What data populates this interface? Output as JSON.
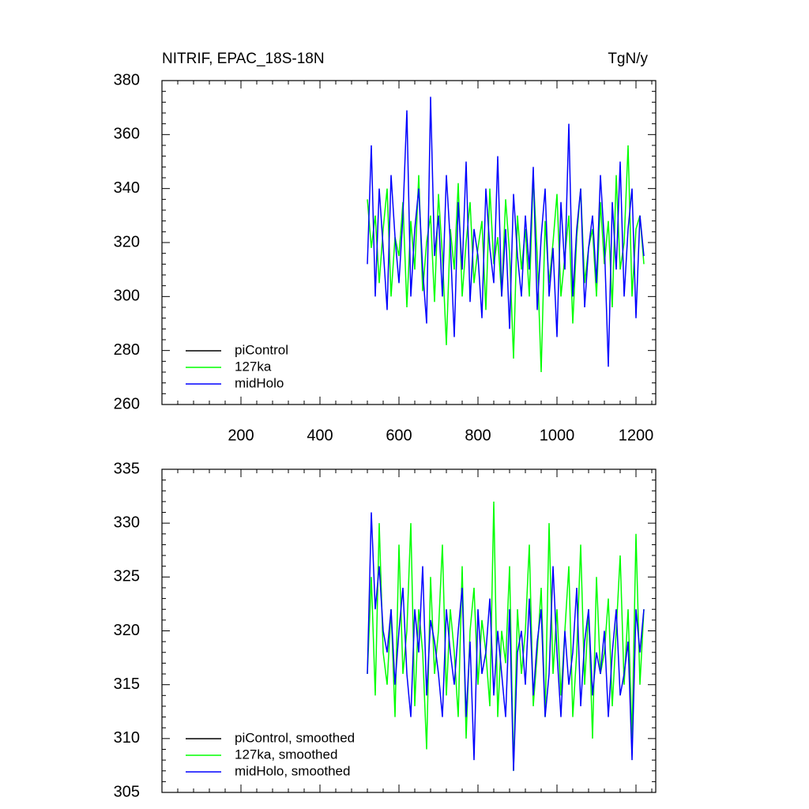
{
  "chart_data": [
    {
      "type": "line",
      "title": "NITRIF, EPAC_18S-18N",
      "units": "TgN/y",
      "x": [
        520,
        530,
        540,
        550,
        560,
        570,
        580,
        590,
        600,
        610,
        620,
        630,
        640,
        650,
        660,
        670,
        680,
        690,
        700,
        710,
        720,
        730,
        740,
        750,
        760,
        770,
        780,
        790,
        800,
        810,
        820,
        830,
        840,
        850,
        860,
        870,
        880,
        890,
        900,
        910,
        920,
        930,
        940,
        950,
        960,
        970,
        980,
        990,
        1000,
        1010,
        1020,
        1030,
        1040,
        1050,
        1060,
        1070,
        1080,
        1090,
        1100,
        1110,
        1120,
        1130,
        1140,
        1150,
        1160,
        1170,
        1180,
        1190,
        1200,
        1210,
        1220
      ],
      "xlim": [
        0,
        1250
      ],
      "xticks": [
        200,
        400,
        600,
        800,
        1000,
        1200
      ],
      "ylim": [
        260,
        380
      ],
      "yticks": [
        260,
        280,
        300,
        320,
        340,
        360,
        380
      ],
      "legend": "lower left",
      "series": [
        {
          "name": "piControl",
          "color": "#000000",
          "values": [
            null,
            null,
            null,
            null,
            null,
            null,
            null,
            null,
            null,
            null,
            null,
            null,
            null,
            null,
            null,
            null,
            null,
            null,
            null,
            null,
            null,
            null,
            null,
            null,
            null,
            null,
            null,
            null,
            null,
            null,
            null,
            null,
            null,
            null,
            null,
            null,
            null,
            null,
            null,
            null,
            null,
            null,
            null,
            null,
            null,
            null,
            null,
            null,
            null,
            null,
            null,
            null,
            null,
            null,
            null,
            null,
            null,
            null,
            null,
            null,
            null,
            null,
            null,
            null,
            null,
            null,
            null,
            null,
            null,
            null,
            null
          ]
        },
        {
          "name": "127ka",
          "color": "#00ff00",
          "values": [
            336,
            318,
            330,
            305,
            325,
            340,
            300,
            322,
            315,
            335,
            296,
            328,
            310,
            345,
            302,
            320,
            330,
            298,
            338,
            315,
            282,
            325,
            310,
            342,
            300,
            320,
            335,
            305,
            318,
            328,
            295,
            340,
            312,
            322,
            300,
            336,
            316,
            277,
            330,
            310,
            325,
            300,
            345,
            315,
            272,
            328,
            305,
            320,
            338,
            300,
            315,
            330,
            290,
            322,
            340,
            305,
            318,
            325,
            300,
            335,
            312,
            328,
            296,
            345,
            310,
            320,
            356,
            300,
            325,
            330,
            312
          ]
        },
        {
          "name": "midHolo",
          "color": "#0000ff",
          "values": [
            312,
            356,
            300,
            340,
            318,
            295,
            345,
            322,
            305,
            330,
            369,
            300,
            325,
            340,
            310,
            290,
            374,
            315,
            330,
            300,
            345,
            320,
            285,
            335,
            310,
            350,
            298,
            325,
            315,
            292,
            340,
            318,
            305,
            352,
            300,
            325,
            288,
            338,
            315,
            300,
            330,
            310,
            348,
            295,
            322,
            340,
            300,
            318,
            285,
            335,
            310,
            364,
            300,
            325,
            340,
            296,
            318,
            330,
            305,
            345,
            320,
            274,
            335,
            310,
            350,
            300,
            325,
            340,
            292,
            330,
            315
          ]
        }
      ]
    },
    {
      "type": "line",
      "x": [
        520,
        530,
        540,
        550,
        560,
        570,
        580,
        590,
        600,
        610,
        620,
        630,
        640,
        650,
        660,
        670,
        680,
        690,
        700,
        710,
        720,
        730,
        740,
        750,
        760,
        770,
        780,
        790,
        800,
        810,
        820,
        830,
        840,
        850,
        860,
        870,
        880,
        890,
        900,
        910,
        920,
        930,
        940,
        950,
        960,
        970,
        980,
        990,
        1000,
        1010,
        1020,
        1030,
        1040,
        1050,
        1060,
        1070,
        1080,
        1090,
        1100,
        1110,
        1120,
        1130,
        1140,
        1150,
        1160,
        1170,
        1180,
        1190,
        1200,
        1210,
        1220
      ],
      "xlim": [
        0,
        1250
      ],
      "xticks": [
        200,
        400,
        600,
        800,
        1000,
        1200
      ],
      "ylim": [
        305,
        335
      ],
      "yticks": [
        305,
        310,
        315,
        320,
        325,
        330,
        335
      ],
      "legend": "lower left",
      "series": [
        {
          "name": "piControl, smoothed",
          "color": "#000000",
          "values": [
            null,
            null,
            null,
            null,
            null,
            null,
            null,
            null,
            null,
            null,
            null,
            null,
            null,
            null,
            null,
            null,
            null,
            null,
            null,
            null,
            null,
            null,
            null,
            null,
            null,
            null,
            null,
            null,
            null,
            null,
            null,
            null,
            null,
            null,
            null,
            null,
            null,
            null,
            null,
            null,
            null,
            null,
            null,
            null,
            null,
            null,
            null,
            null,
            null,
            null,
            null,
            null,
            null,
            null,
            null,
            null,
            null,
            null,
            null,
            null,
            null,
            null,
            null,
            null,
            null,
            null,
            null,
            null,
            null,
            null,
            null
          ]
        },
        {
          "name": "127ka, smoothed",
          "color": "#00ff00",
          "values": [
            316,
            325,
            314,
            330,
            318,
            315,
            322,
            312,
            328,
            316,
            320,
            330,
            313,
            322,
            318,
            309,
            325,
            316,
            320,
            328,
            314,
            322,
            318,
            312,
            326,
            310,
            320,
            324,
            315,
            321,
            318,
            313,
            332,
            312,
            320,
            317,
            326,
            307,
            322,
            316,
            320,
            328,
            313,
            318,
            324,
            312,
            330,
            316,
            322,
            314,
            320,
            326,
            312,
            318,
            328,
            315,
            322,
            310,
            325,
            316,
            318,
            323,
            313,
            320,
            327,
            315,
            322,
            310,
            329,
            315,
            322
          ]
        },
        {
          "name": "midHolo, smoothed",
          "color": "#0000ff",
          "values": [
            316,
            331,
            322,
            326,
            320,
            318,
            322,
            315,
            320,
            324,
            316,
            312,
            322,
            318,
            326,
            314,
            321,
            319,
            316,
            312,
            322,
            318,
            315,
            320,
            324,
            312,
            319,
            308,
            322,
            316,
            318,
            323,
            314,
            320,
            316,
            312,
            322,
            307,
            318,
            320,
            315,
            323,
            314,
            319,
            322,
            312,
            316,
            326,
            318,
            312,
            320,
            315,
            318,
            324,
            313,
            319,
            322,
            314,
            318,
            316,
            320,
            312,
            318,
            322,
            314,
            316,
            319,
            308,
            322,
            318,
            322
          ]
        }
      ]
    }
  ]
}
